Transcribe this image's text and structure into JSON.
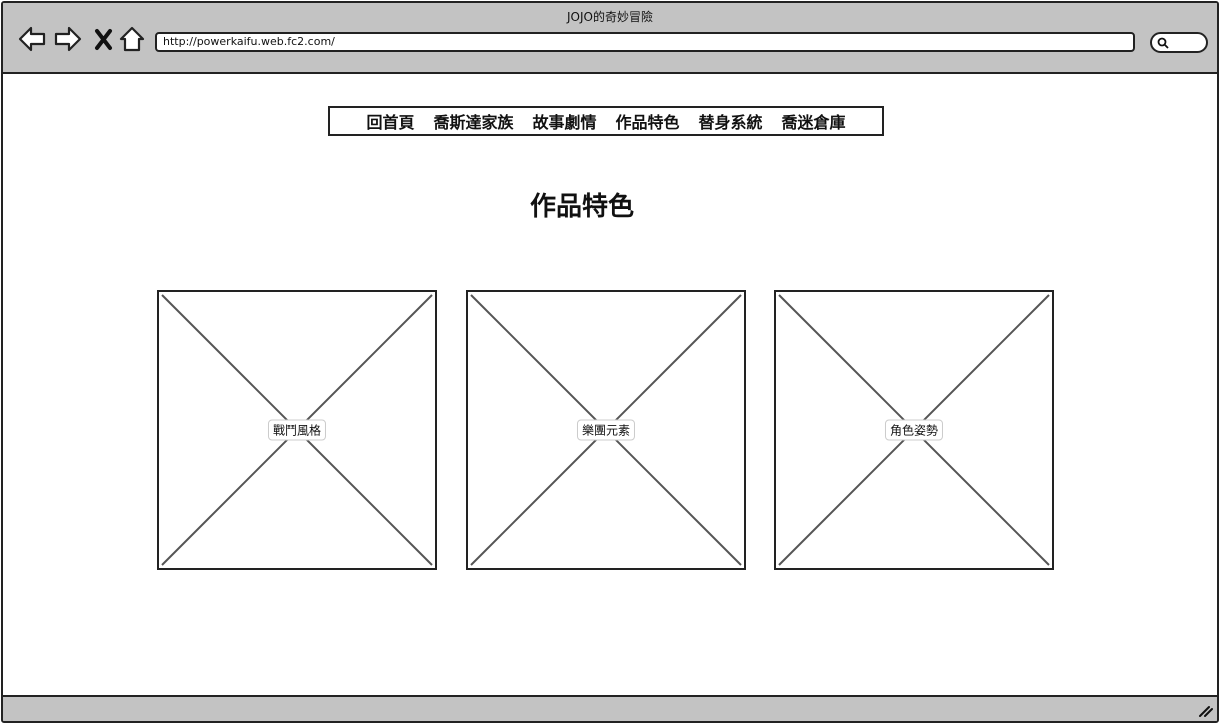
{
  "window": {
    "title": "JOJO的奇妙冒險"
  },
  "address_bar": {
    "url": "http://powerkaifu.web.fc2.com/"
  },
  "nav": {
    "items": [
      "回首頁",
      "喬斯達家族",
      "故事劇情",
      "作品特色",
      "替身系統",
      "喬迷倉庫"
    ]
  },
  "main": {
    "title": "作品特色",
    "cards": [
      {
        "caption": "戰鬥風格"
      },
      {
        "caption": "樂團元素"
      },
      {
        "caption": "角色姿勢"
      }
    ]
  },
  "icons": [
    "back-arrow-icon",
    "forward-arrow-icon",
    "close-icon",
    "home-icon",
    "search-icon",
    "resize-grip-icon"
  ]
}
